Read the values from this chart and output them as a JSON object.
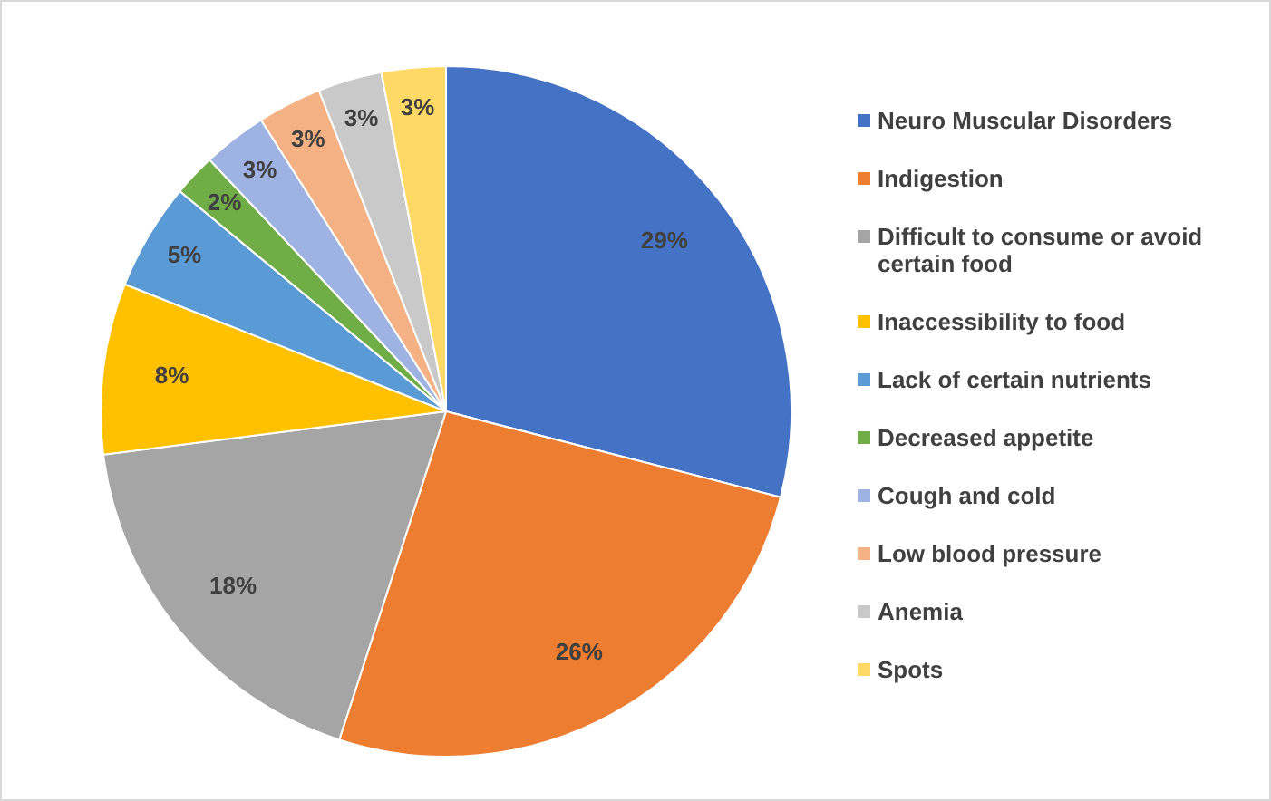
{
  "chart_data": {
    "type": "pie",
    "categories": [
      "Neuro Muscular Disorders",
      "Indigestion",
      "Difficult to consume or avoid certain food",
      "Inaccessibility to food",
      "Lack of certain nutrients",
      "Decreased appetite",
      "Cough and cold",
      "Low blood pressure",
      "Anemia",
      "Spots"
    ],
    "values": [
      29,
      26,
      18,
      8,
      5,
      2,
      3,
      3,
      3,
      3
    ],
    "value_labels": [
      "29%",
      "26%",
      "18%",
      "8%",
      "5%",
      "2%",
      "3%",
      "3%",
      "3%",
      "3%"
    ],
    "colors": [
      "#4472c4",
      "#ed7d31",
      "#a5a5a5",
      "#ffc000",
      "#5b9bd5",
      "#70ad47",
      "#9eb3e2",
      "#f4b183",
      "#c9c9c9",
      "#ffd966"
    ],
    "legend": "right"
  }
}
